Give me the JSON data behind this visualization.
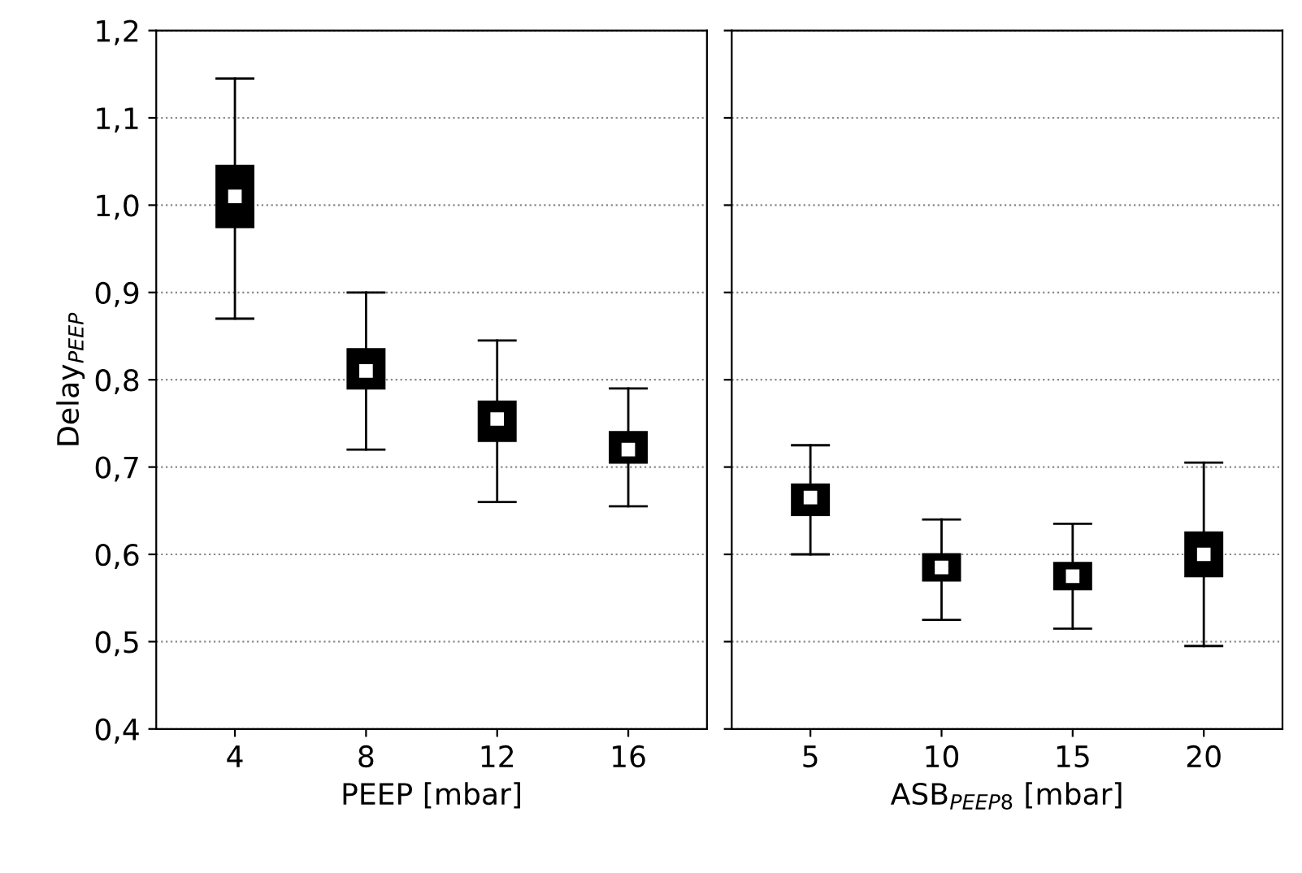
{
  "chart_data": [
    {
      "type": "box",
      "categories": [
        "4",
        "8",
        "12",
        "16"
      ],
      "xlabel": "PEEP [mbar]",
      "ylabel": "Delay$_{PEEP}$",
      "ylim": [
        0.4,
        1.2
      ],
      "yticks": [
        {
          "value": 0.4,
          "label": "0,4"
        },
        {
          "value": 0.5,
          "label": "0,5"
        },
        {
          "value": 0.6,
          "label": "0,6"
        },
        {
          "value": 0.7,
          "label": "0,7"
        },
        {
          "value": 0.8,
          "label": "0,8"
        },
        {
          "value": 0.9,
          "label": "0,9"
        },
        {
          "value": 1.0,
          "label": "1,0"
        },
        {
          "value": 1.1,
          "label": "1,1"
        },
        {
          "value": 1.2,
          "label": "1,2"
        }
      ],
      "grid": "y",
      "color": "#000000",
      "boxes": [
        {
          "low": 0.87,
          "q1": 0.975,
          "median": 1.01,
          "q3": 1.045,
          "high": 1.145
        },
        {
          "low": 0.72,
          "q1": 0.79,
          "median": 0.81,
          "q3": 0.835,
          "high": 0.9
        },
        {
          "low": 0.66,
          "q1": 0.73,
          "median": 0.755,
          "q3": 0.775,
          "high": 0.845
        },
        {
          "low": 0.655,
          "q1": 0.705,
          "median": 0.72,
          "q3": 0.74,
          "high": 0.79
        }
      ]
    },
    {
      "type": "box",
      "categories": [
        "5",
        "10",
        "15",
        "20"
      ],
      "xlabel": "ASB$_{PEEP8}$ [mbar]",
      "ylim": [
        0.4,
        1.2
      ],
      "yticks": [
        {
          "value": 0.4,
          "label": null
        },
        {
          "value": 0.5,
          "label": null
        },
        {
          "value": 0.6,
          "label": null
        },
        {
          "value": 0.7,
          "label": null
        },
        {
          "value": 0.8,
          "label": null
        },
        {
          "value": 0.9,
          "label": null
        },
        {
          "value": 1.0,
          "label": null
        },
        {
          "value": 1.1,
          "label": null
        },
        {
          "value": 1.2,
          "label": null
        }
      ],
      "grid": "y",
      "color": "#000000",
      "tick_labels": "x",
      "boxes": [
        {
          "low": 0.6,
          "q1": 0.645,
          "median": 0.665,
          "q3": 0.68,
          "high": 0.725
        },
        {
          "low": 0.525,
          "q1": 0.57,
          "median": 0.585,
          "q3": 0.6,
          "high": 0.64
        },
        {
          "low": 0.515,
          "q1": 0.56,
          "median": 0.575,
          "q3": 0.59,
          "high": 0.635
        },
        {
          "low": 0.495,
          "q1": 0.575,
          "median": 0.6,
          "q3": 0.625,
          "high": 0.705
        }
      ]
    }
  ]
}
